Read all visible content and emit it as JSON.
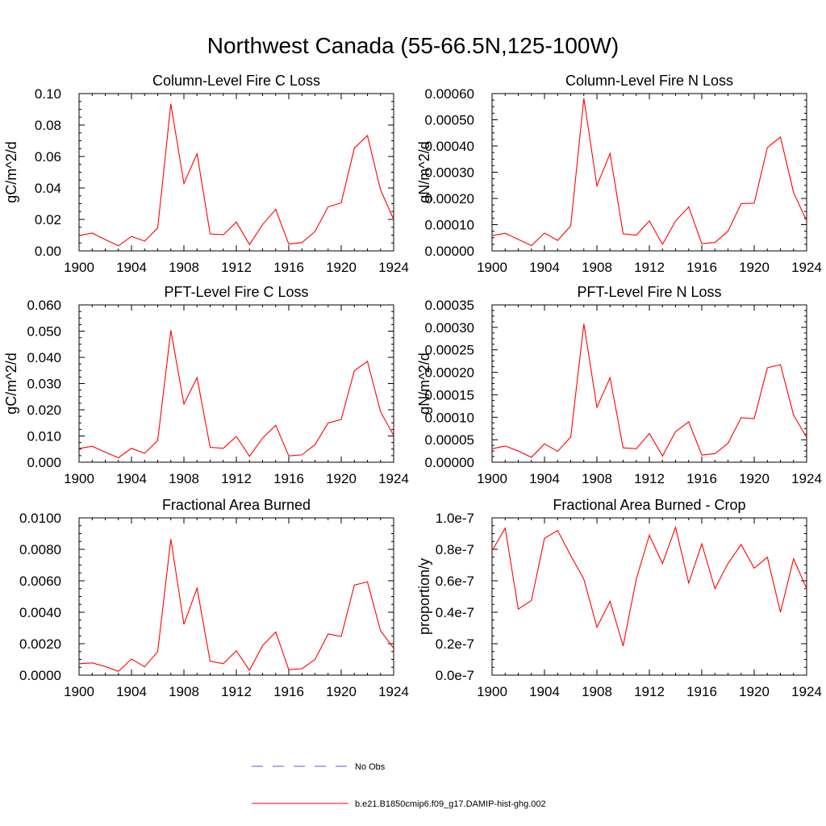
{
  "figure": {
    "title": "Northwest Canada (55-66.5N,125-100W)"
  },
  "legend": {
    "entries": [
      {
        "label": "No Obs",
        "color": "#5a5ad2",
        "style": "dashed"
      },
      {
        "label": "b.e21.B1850cmip6.f09_g17.DAMIP-hist-ghg.002",
        "color": "#ff0000",
        "style": "solid"
      }
    ]
  },
  "chart_data": [
    {
      "type": "line",
      "title": "Column-Level Fire C Loss",
      "ylabel": "gC/m^2/d",
      "xlim": [
        1900,
        1924
      ],
      "ylim": [
        0,
        0.1
      ],
      "xticks": [
        1900,
        1904,
        1908,
        1912,
        1916,
        1920,
        1924
      ],
      "yticks": [
        0,
        0.02,
        0.04,
        0.06,
        0.08,
        0.1
      ],
      "ytick_labels": [
        "0.00",
        "0.02",
        "0.04",
        "0.06",
        "0.08",
        "0.10"
      ],
      "x": [
        1900,
        1901,
        1902,
        1903,
        1904,
        1905,
        1906,
        1907,
        1908,
        1909,
        1910,
        1911,
        1912,
        1913,
        1914,
        1915,
        1916,
        1917,
        1918,
        1919,
        1920,
        1921,
        1922,
        1923,
        1924
      ],
      "series": [
        {
          "name": "b.e21.B1850cmip6.f09_g17.DAMIP-hist-ghg.002",
          "color": "#ff0000",
          "values": [
            0.0097,
            0.0113,
            0.0072,
            0.0032,
            0.0092,
            0.0062,
            0.0145,
            0.0935,
            0.0428,
            0.0618,
            0.0108,
            0.0102,
            0.0183,
            0.004,
            0.0167,
            0.0263,
            0.0043,
            0.0053,
            0.0123,
            0.028,
            0.0305,
            0.0653,
            0.0733,
            0.0387,
            0.02
          ]
        }
      ]
    },
    {
      "type": "line",
      "title": "Column-Level Fire N Loss",
      "ylabel": "gN/m^2/d",
      "xlim": [
        1900,
        1924
      ],
      "ylim": [
        0,
        0.0006
      ],
      "xticks": [
        1900,
        1904,
        1908,
        1912,
        1916,
        1920,
        1924
      ],
      "yticks": [
        0,
        0.0001,
        0.0002,
        0.0003,
        0.0004,
        0.0005,
        0.0006
      ],
      "ytick_labels": [
        "0.00000",
        "0.00010",
        "0.00020",
        "0.00030",
        "0.00040",
        "0.00050",
        "0.00060"
      ],
      "x": [
        1900,
        1901,
        1902,
        1903,
        1904,
        1905,
        1906,
        1907,
        1908,
        1909,
        1910,
        1911,
        1912,
        1913,
        1914,
        1915,
        1916,
        1917,
        1918,
        1919,
        1920,
        1921,
        1922,
        1923,
        1924
      ],
      "series": [
        {
          "name": "b.e21.B1850cmip6.f09_g17.DAMIP-hist-ghg.002",
          "color": "#ff0000",
          "values": [
            5.8e-05,
            6.7e-05,
            4.4e-05,
            2e-05,
            6.8e-05,
            4e-05,
            9.5e-05,
            0.000582,
            0.000248,
            0.000372,
            6.5e-05,
            6e-05,
            0.000114,
            2.5e-05,
            0.000114,
            0.000168,
            2.7e-05,
            3.2e-05,
            7.5e-05,
            0.00018,
            0.000182,
            0.000394,
            0.000434,
            0.000222,
            0.000115
          ]
        }
      ]
    },
    {
      "type": "line",
      "title": "PFT-Level Fire C Loss",
      "ylabel": "gC/m^2/d",
      "xlim": [
        1900,
        1924
      ],
      "ylim": [
        0,
        0.06
      ],
      "xticks": [
        1900,
        1904,
        1908,
        1912,
        1916,
        1920,
        1924
      ],
      "yticks": [
        0,
        0.01,
        0.02,
        0.03,
        0.04,
        0.05,
        0.06
      ],
      "ytick_labels": [
        "0.000",
        "0.010",
        "0.020",
        "0.030",
        "0.040",
        "0.050",
        "0.060"
      ],
      "x": [
        1900,
        1901,
        1902,
        1903,
        1904,
        1905,
        1906,
        1907,
        1908,
        1909,
        1910,
        1911,
        1912,
        1913,
        1914,
        1915,
        1916,
        1917,
        1918,
        1919,
        1920,
        1921,
        1922,
        1923,
        1924
      ],
      "series": [
        {
          "name": "b.e21.B1850cmip6.f09_g17.DAMIP-hist-ghg.002",
          "color": "#ff0000",
          "values": [
            0.0052,
            0.0061,
            0.0038,
            0.0017,
            0.0053,
            0.0034,
            0.0083,
            0.0503,
            0.0222,
            0.0323,
            0.0057,
            0.0053,
            0.0098,
            0.0023,
            0.0092,
            0.0141,
            0.0024,
            0.0028,
            0.0067,
            0.015,
            0.0163,
            0.0349,
            0.0385,
            0.0192,
            0.0102
          ]
        }
      ]
    },
    {
      "type": "line",
      "title": "PFT-Level Fire N Loss",
      "ylabel": "gN/m^2/d",
      "xlim": [
        1900,
        1924
      ],
      "ylim": [
        0,
        0.00035
      ],
      "xticks": [
        1900,
        1904,
        1908,
        1912,
        1916,
        1920,
        1924
      ],
      "yticks": [
        0,
        5e-05,
        0.0001,
        0.00015,
        0.0002,
        0.00025,
        0.0003,
        0.00035
      ],
      "ytick_labels": [
        "0.00000",
        "0.00005",
        "0.00010",
        "0.00015",
        "0.00020",
        "0.00025",
        "0.00030",
        "0.00035"
      ],
      "x": [
        1900,
        1901,
        1902,
        1903,
        1904,
        1905,
        1906,
        1907,
        1908,
        1909,
        1910,
        1911,
        1912,
        1913,
        1914,
        1915,
        1916,
        1917,
        1918,
        1919,
        1920,
        1921,
        1922,
        1923,
        1924
      ],
      "series": [
        {
          "name": "b.e21.B1850cmip6.f09_g17.DAMIP-hist-ghg.002",
          "color": "#ff0000",
          "values": [
            3e-05,
            3.6e-05,
            2.5e-05,
            1.1e-05,
            4.1e-05,
            2.4e-05,
            5.6e-05,
            0.000308,
            0.000122,
            0.000188,
            3.2e-05,
            3e-05,
            6.4e-05,
            1.4e-05,
            6.8e-05,
            9e-05,
            1.6e-05,
            1.9e-05,
            4.2e-05,
            9.9e-05,
            9.7e-05,
            0.00021,
            0.000217,
            0.000105,
            5.5e-05
          ]
        }
      ]
    },
    {
      "type": "line",
      "title": "Fractional Area Burned",
      "ylabel": "",
      "xlim": [
        1900,
        1924
      ],
      "ylim": [
        0,
        0.01
      ],
      "xticks": [
        1900,
        1904,
        1908,
        1912,
        1916,
        1920,
        1924
      ],
      "yticks": [
        0,
        0.002,
        0.004,
        0.006,
        0.008,
        0.01
      ],
      "ytick_labels": [
        "0.0000",
        "0.0020",
        "0.0040",
        "0.0060",
        "0.0080",
        "0.0100"
      ],
      "x": [
        1900,
        1901,
        1902,
        1903,
        1904,
        1905,
        1906,
        1907,
        1908,
        1909,
        1910,
        1911,
        1912,
        1913,
        1914,
        1915,
        1916,
        1917,
        1918,
        1919,
        1920,
        1921,
        1922,
        1923,
        1924
      ],
      "series": [
        {
          "name": "b.e21.B1850cmip6.f09_g17.DAMIP-hist-ghg.002",
          "color": "#ff0000",
          "values": [
            0.00073,
            0.00078,
            0.00055,
            0.00024,
            0.00103,
            0.00053,
            0.0015,
            0.00865,
            0.00323,
            0.00553,
            0.00088,
            0.00073,
            0.00155,
            0.00031,
            0.00187,
            0.00275,
            0.00035,
            0.00041,
            0.001,
            0.00262,
            0.00246,
            0.00573,
            0.00593,
            0.00282,
            0.00171
          ]
        }
      ]
    },
    {
      "type": "line",
      "title": "Fractional Area Burned - Crop",
      "ylabel": "proportion/y",
      "xlim": [
        1900,
        1924
      ],
      "ylim": [
        0,
        1e-07
      ],
      "xticks": [
        1900,
        1904,
        1908,
        1912,
        1916,
        1920,
        1924
      ],
      "yticks": [
        0,
        2e-08,
        4e-08,
        6e-08,
        8e-08,
        1e-07
      ],
      "ytick_labels": [
        "0.0e-7",
        "0.2e-7",
        "0.4e-7",
        "0.6e-7",
        "0.8e-7",
        "1.0e-7"
      ],
      "x": [
        1900,
        1901,
        1902,
        1903,
        1904,
        1905,
        1906,
        1907,
        1908,
        1909,
        1910,
        1911,
        1912,
        1913,
        1914,
        1915,
        1916,
        1917,
        1918,
        1919,
        1920,
        1921,
        1922,
        1923,
        1924
      ],
      "series": [
        {
          "name": "b.e21.B1850cmip6.f09_g17.DAMIP-hist-ghg.002",
          "color": "#ff0000",
          "values": [
            7.9e-08,
            9.35e-08,
            4.2e-08,
            4.75e-08,
            8.7e-08,
            9.2e-08,
            7.6e-08,
            6.1e-08,
            3.05e-08,
            4.7e-08,
            1.85e-08,
            6.1e-08,
            8.9e-08,
            7.1e-08,
            9.4e-08,
            5.85e-08,
            8.35e-08,
            5.5e-08,
            7.1e-08,
            8.3e-08,
            6.8e-08,
            7.5e-08,
            4e-08,
            7.4e-08,
            5.5e-08
          ]
        }
      ]
    }
  ]
}
